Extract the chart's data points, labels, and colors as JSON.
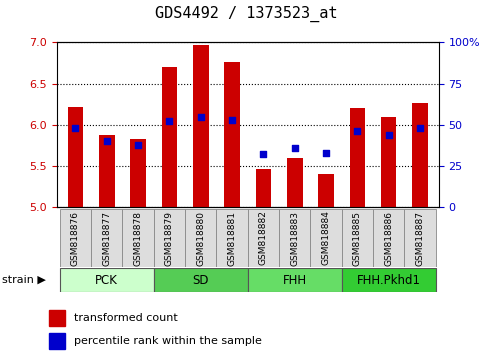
{
  "title": "GDS4492 / 1373523_at",
  "samples": [
    "GSM818876",
    "GSM818877",
    "GSM818878",
    "GSM818879",
    "GSM818880",
    "GSM818881",
    "GSM818882",
    "GSM818883",
    "GSM818884",
    "GSM818885",
    "GSM818886",
    "GSM818887"
  ],
  "transformed_count": [
    6.22,
    5.88,
    5.83,
    6.7,
    6.97,
    6.76,
    5.46,
    5.6,
    5.4,
    6.2,
    6.1,
    6.26
  ],
  "percentile_rank": [
    48,
    40,
    38,
    52,
    55,
    53,
    32,
    36,
    33,
    46,
    44,
    48
  ],
  "ylim_left": [
    5.0,
    7.0
  ],
  "ylim_right": [
    0,
    100
  ],
  "yticks_left": [
    5.0,
    5.5,
    6.0,
    6.5,
    7.0
  ],
  "yticks_right": [
    0,
    25,
    50,
    75,
    100
  ],
  "bar_color": "#cc0000",
  "dot_color": "#0000cc",
  "bar_width": 0.5,
  "groups": [
    {
      "label": "PCK",
      "start": 0,
      "end": 3,
      "color": "#ccffcc"
    },
    {
      "label": "SD",
      "start": 3,
      "end": 6,
      "color": "#55cc55"
    },
    {
      "label": "FHH",
      "start": 6,
      "end": 9,
      "color": "#66dd66"
    },
    {
      "label": "FHH.Pkhd1",
      "start": 9,
      "end": 12,
      "color": "#33cc33"
    }
  ],
  "strain_label": "strain",
  "legend_bar_label": "transformed count",
  "legend_dot_label": "percentile rank within the sample",
  "title_fontsize": 11,
  "tick_fontsize": 8,
  "label_fontsize": 8,
  "group_fontsize": 8.5
}
